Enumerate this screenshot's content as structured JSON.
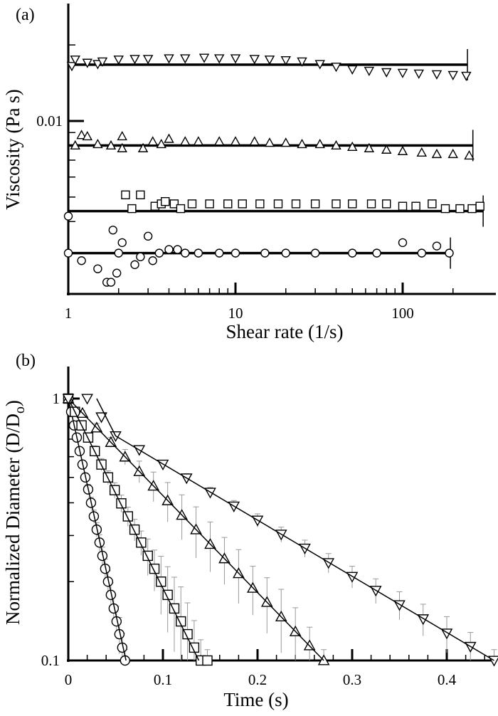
{
  "chart_data": [
    {
      "type": "scatter",
      "panel_label": "(a)",
      "xlabel": "Shear rate (1/s)",
      "ylabel": "Viscosity (Pa s)",
      "xscale": "log",
      "yscale": "log",
      "xlim": [
        1,
        300
      ],
      "ylim": [
        0.0021,
        0.029
      ],
      "x_tick_labels": [
        "1",
        "10",
        "100"
      ],
      "y_tick_labels": [
        "0.01"
      ],
      "grid": false,
      "series": [
        {
          "marker": "triangle-down",
          "fit": 0.0167,
          "fit_range": [
            1,
            244
          ],
          "points": [
            [
              1.05,
              0.0165
            ],
            [
              1.1,
              0.0175
            ],
            [
              1.3,
              0.017
            ],
            [
              1.5,
              0.0168
            ],
            [
              1.6,
              0.0172
            ],
            [
              2,
              0.0175
            ],
            [
              2.5,
              0.0176
            ],
            [
              3,
              0.0176
            ],
            [
              4,
              0.0177
            ],
            [
              5,
              0.0177
            ],
            [
              6.5,
              0.0178
            ],
            [
              8,
              0.0177
            ],
            [
              10,
              0.0177
            ],
            [
              13,
              0.0176
            ],
            [
              16,
              0.0175
            ],
            [
              20,
              0.0174
            ],
            [
              25,
              0.0172
            ],
            [
              32,
              0.0168
            ],
            [
              40,
              0.0164
            ],
            [
              50,
              0.016
            ],
            [
              63,
              0.0158
            ],
            [
              80,
              0.0156
            ],
            [
              100,
              0.0155
            ],
            [
              125,
              0.0154
            ],
            [
              160,
              0.0153
            ],
            [
              200,
              0.0152
            ],
            [
              240,
              0.0151
            ]
          ]
        },
        {
          "marker": "triangle-up",
          "fit": 0.008,
          "fit_range": [
            1,
            263
          ],
          "points": [
            [
              1.1,
              0.008
            ],
            [
              1.2,
              0.0088
            ],
            [
              1.3,
              0.0087
            ],
            [
              1.5,
              0.0081
            ],
            [
              1.8,
              0.008
            ],
            [
              2.1,
              0.0087
            ],
            [
              2.1,
              0.0078
            ],
            [
              2.8,
              0.0078
            ],
            [
              3.2,
              0.0083
            ],
            [
              3.6,
              0.0081
            ],
            [
              4,
              0.0085
            ],
            [
              5,
              0.0083
            ],
            [
              6,
              0.0083
            ],
            [
              8,
              0.0083
            ],
            [
              10,
              0.0083
            ],
            [
              13,
              0.0083
            ],
            [
              16,
              0.0082
            ],
            [
              20,
              0.0082
            ],
            [
              25,
              0.0081
            ],
            [
              32,
              0.0081
            ],
            [
              40,
              0.008
            ],
            [
              50,
              0.0079
            ],
            [
              63,
              0.0078
            ],
            [
              80,
              0.0077
            ],
            [
              100,
              0.0076
            ],
            [
              130,
              0.0075
            ],
            [
              160,
              0.0074
            ],
            [
              200,
              0.0074
            ],
            [
              250,
              0.0073
            ]
          ]
        },
        {
          "marker": "square",
          "fit": 0.0044,
          "fit_range": [
            1,
            303
          ],
          "points": [
            [
              2.2,
              0.0051
            ],
            [
              2.4,
              0.0045
            ],
            [
              2.7,
              0.0051
            ],
            [
              3.3,
              0.0046
            ],
            [
              3.6,
              0.0047
            ],
            [
              3.8,
              0.0048
            ],
            [
              4.3,
              0.0047
            ],
            [
              4.7,
              0.0045
            ],
            [
              5.5,
              0.0047
            ],
            [
              7,
              0.0047
            ],
            [
              9,
              0.0047
            ],
            [
              11,
              0.0047
            ],
            [
              14,
              0.0047
            ],
            [
              18,
              0.0047
            ],
            [
              23,
              0.0047
            ],
            [
              30,
              0.0047
            ],
            [
              40,
              0.0047
            ],
            [
              50,
              0.0047
            ],
            [
              65,
              0.0047
            ],
            [
              80,
              0.0047
            ],
            [
              100,
              0.0046
            ],
            [
              120,
              0.0046
            ],
            [
              150,
              0.0047
            ],
            [
              180,
              0.0045
            ],
            [
              220,
              0.0045
            ],
            [
              260,
              0.0045
            ],
            [
              290,
              0.0046
            ]
          ]
        },
        {
          "marker": "circle",
          "fit": 0.003,
          "fit_range": [
            1,
            193
          ],
          "points": [
            [
              1,
              0.003
            ],
            [
              1,
              0.0042
            ],
            [
              1.2,
              0.0028
            ],
            [
              1.5,
              0.0026
            ],
            [
              1.7,
              0.0023
            ],
            [
              1.8,
              0.0023
            ],
            [
              1.85,
              0.0037
            ],
            [
              1.95,
              0.0025
            ],
            [
              2.0,
              0.003
            ],
            [
              2.1,
              0.0033
            ],
            [
              2.5,
              0.0027
            ],
            [
              2.7,
              0.0029
            ],
            [
              3,
              0.0035
            ],
            [
              3.2,
              0.0028
            ],
            [
              3.5,
              0.003
            ],
            [
              4,
              0.0031
            ],
            [
              4.5,
              0.0031
            ],
            [
              5,
              0.003
            ],
            [
              6,
              0.003
            ],
            [
              8,
              0.003
            ],
            [
              10,
              0.003
            ],
            [
              15,
              0.003
            ],
            [
              20,
              0.003
            ],
            [
              30,
              0.003
            ],
            [
              50,
              0.003
            ],
            [
              70,
              0.003
            ],
            [
              100,
              0.0033
            ],
            [
              130,
              0.003
            ],
            [
              160,
              0.0032
            ],
            [
              190,
              0.003
            ]
          ]
        }
      ]
    },
    {
      "type": "scatter",
      "panel_label": "(b)",
      "xlabel": "Time (s)",
      "ylabel": "Normalized Diameter (D/D",
      "ylabel_sub": "o",
      "ylabel_end": ")",
      "xscale": "linear",
      "yscale": "log",
      "xlim": [
        0,
        0.45
      ],
      "ylim": [
        0.1,
        1.3
      ],
      "x_tick_labels": [
        "0",
        "0.1",
        "0.2",
        "0.3",
        "0.4"
      ],
      "y_tick_labels": [
        "1",
        "0.1"
      ],
      "grid": false,
      "error_bar_color": "#999999",
      "series": [
        {
          "marker": "circle",
          "fit": [
            [
              0,
              1
            ],
            [
              0.061,
              0.1
            ]
          ],
          "points": [
            [
              0,
              1,
              0.01
            ],
            [
              0.003,
              0.89,
              0.02
            ],
            [
              0.006,
              0.79,
              0.02
            ],
            [
              0.009,
              0.71,
              0.02
            ],
            [
              0.012,
              0.63,
              0.02
            ],
            [
              0.015,
              0.56,
              0.02
            ],
            [
              0.018,
              0.5,
              0.02
            ],
            [
              0.021,
              0.45,
              0.02
            ],
            [
              0.024,
              0.4,
              0.02
            ],
            [
              0.027,
              0.355,
              0.02
            ],
            [
              0.03,
              0.316,
              0.02
            ],
            [
              0.033,
              0.282,
              0.02
            ],
            [
              0.036,
              0.251,
              0.02
            ],
            [
              0.039,
              0.224,
              0.02
            ],
            [
              0.042,
              0.2,
              0.02
            ],
            [
              0.045,
              0.178,
              0.02
            ],
            [
              0.048,
              0.158,
              0.02
            ],
            [
              0.051,
              0.141,
              0.02
            ],
            [
              0.054,
              0.126,
              0.02
            ],
            [
              0.057,
              0.112,
              0.015
            ],
            [
              0.06,
              0.1,
              0.01
            ]
          ]
        },
        {
          "marker": "square",
          "fit": [
            [
              0,
              1
            ],
            [
              0.138,
              0.1
            ]
          ],
          "points": [
            [
              0,
              1,
              0.01
            ],
            [
              0.007,
              0.89,
              0.02
            ],
            [
              0.014,
              0.79,
              0.02
            ],
            [
              0.021,
              0.71,
              0.03
            ],
            [
              0.028,
              0.63,
              0.03
            ],
            [
              0.035,
              0.56,
              0.03
            ],
            [
              0.042,
              0.5,
              0.03
            ],
            [
              0.049,
              0.447,
              0.03
            ],
            [
              0.056,
              0.398,
              0.03
            ],
            [
              0.063,
              0.355,
              0.03
            ],
            [
              0.07,
              0.316,
              0.03
            ],
            [
              0.077,
              0.282,
              0.03
            ],
            [
              0.084,
              0.251,
              0.04
            ],
            [
              0.091,
              0.224,
              0.04
            ],
            [
              0.098,
              0.2,
              0.05
            ],
            [
              0.105,
              0.178,
              0.05
            ],
            [
              0.112,
              0.158,
              0.05
            ],
            [
              0.119,
              0.141,
              0.05
            ],
            [
              0.126,
              0.126,
              0.04
            ],
            [
              0.133,
              0.112,
              0.03
            ],
            [
              0.14,
              0.1,
              0.02
            ],
            [
              0.147,
              0.1,
              0.01
            ]
          ]
        },
        {
          "marker": "triangle-up",
          "fit": [
            [
              0,
              1
            ],
            [
              0.27,
              0.1
            ]
          ],
          "points": [
            [
              0,
              1,
              0.01
            ],
            [
              0.015,
              0.88,
              0.02
            ],
            [
              0.03,
              0.774,
              0.03
            ],
            [
              0.045,
              0.681,
              0.03
            ],
            [
              0.06,
              0.599,
              0.04
            ],
            [
              0.075,
              0.527,
              0.05
            ],
            [
              0.09,
              0.464,
              0.06
            ],
            [
              0.105,
              0.408,
              0.07
            ],
            [
              0.12,
              0.359,
              0.07
            ],
            [
              0.135,
              0.316,
              0.07
            ],
            [
              0.15,
              0.278,
              0.06
            ],
            [
              0.165,
              0.245,
              0.05
            ],
            [
              0.18,
              0.215,
              0.05
            ],
            [
              0.195,
              0.189,
              0.04
            ],
            [
              0.21,
              0.167,
              0.04
            ],
            [
              0.225,
              0.147,
              0.04
            ],
            [
              0.24,
              0.129,
              0.03
            ],
            [
              0.255,
              0.114,
              0.02
            ],
            [
              0.27,
              0.1,
              0.01
            ]
          ]
        },
        {
          "marker": "triangle-down",
          "fit": [
            [
              0.03,
              1
            ],
            [
              0.05,
              0.72
            ],
            [
              0.45,
              0.1
            ]
          ],
          "points": [
            [
              0,
              1,
              0.01
            ],
            [
              0.02,
              1.0,
              0.01
            ],
            [
              0.035,
              0.85,
              0.02
            ],
            [
              0.05,
              0.72,
              0.02
            ],
            [
              0.075,
              0.637,
              0.02
            ],
            [
              0.1,
              0.561,
              0.02
            ],
            [
              0.125,
              0.497,
              0.02
            ],
            [
              0.15,
              0.438,
              0.02
            ],
            [
              0.175,
              0.388,
              0.02
            ],
            [
              0.2,
              0.343,
              0.02
            ],
            [
              0.225,
              0.303,
              0.02
            ],
            [
              0.25,
              0.268,
              0.02
            ],
            [
              0.275,
              0.236,
              0.02
            ],
            [
              0.3,
              0.209,
              0.02
            ],
            [
              0.325,
              0.185,
              0.02
            ],
            [
              0.35,
              0.163,
              0.02
            ],
            [
              0.375,
              0.144,
              0.02
            ],
            [
              0.4,
              0.127,
              0.02
            ],
            [
              0.425,
              0.113,
              0.015
            ],
            [
              0.45,
              0.1,
              0.01
            ]
          ]
        }
      ]
    }
  ]
}
